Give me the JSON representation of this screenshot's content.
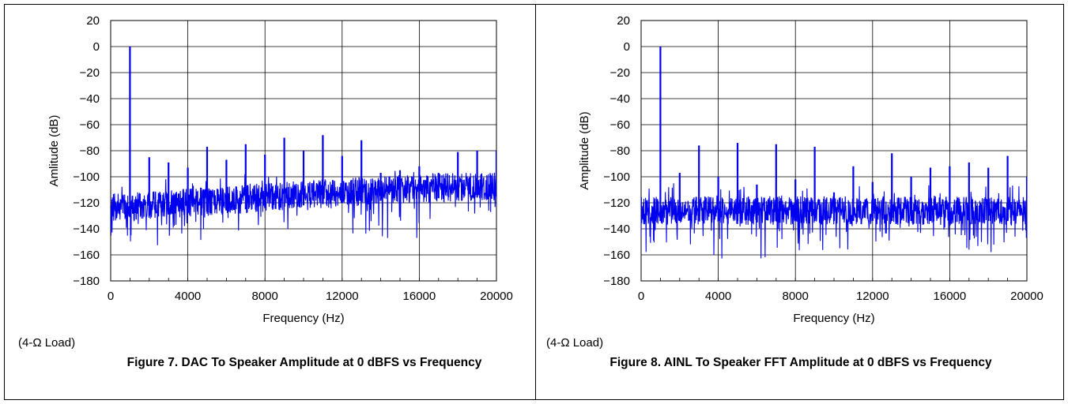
{
  "figures": [
    {
      "caption": "Figure 7. DAC To Speaker Amplitude at 0 dBFS vs Frequency",
      "note": "(4-Ω Load)"
    },
    {
      "caption": "Figure 8. AINL To Speaker FFT Amplitude at 0 dBFS vs Frequency",
      "note": "(4-Ω Load)"
    }
  ],
  "chart_data": [
    {
      "type": "line",
      "title": "",
      "xlabel": "Frequency (Hz)",
      "ylabel": "Amlitude (dB)",
      "xlim": [
        0,
        20000
      ],
      "ylim": [
        -180,
        20
      ],
      "xticks": [
        0,
        4000,
        8000,
        12000,
        16000,
        20000
      ],
      "yticks": [
        20,
        0,
        -20,
        -40,
        -60,
        -80,
        -100,
        -120,
        -140,
        -160,
        -180
      ],
      "grid": true,
      "series_color": "#0000ee",
      "noise_floor": {
        "x": [
          0,
          4000,
          8000,
          12000,
          16000,
          20000
        ],
        "y": [
          -124,
          -120,
          -116,
          -112,
          -109,
          -107
        ]
      },
      "peaks": {
        "x": [
          1000,
          2000,
          3000,
          4000,
          5000,
          6000,
          7000,
          8000,
          9000,
          10000,
          11000,
          12000,
          13000,
          14000,
          15000,
          16000,
          17000,
          18000,
          19000,
          20000
        ],
        "y": [
          0,
          -85,
          -89,
          -93,
          -77,
          -87,
          -75,
          -83,
          -70,
          -80,
          -68,
          -84,
          -72,
          -97,
          -95,
          -92,
          -97,
          -81,
          -80,
          -80
        ]
      }
    },
    {
      "type": "line",
      "title": "",
      "xlabel": "Frequency (Hz)",
      "ylabel": "Amplitude (dB)",
      "xlim": [
        0,
        20000
      ],
      "ylim": [
        -180,
        20
      ],
      "xticks": [
        0,
        4000,
        8000,
        12000,
        16000,
        20000
      ],
      "yticks": [
        20,
        0,
        -20,
        -40,
        -60,
        -80,
        -100,
        -120,
        -140,
        -160,
        -180
      ],
      "grid": true,
      "series_color": "#0000ee",
      "noise_floor": {
        "x": [
          0,
          4000,
          8000,
          12000,
          16000,
          20000
        ],
        "y": [
          -126,
          -126,
          -126,
          -126,
          -126,
          -126
        ]
      },
      "peaks": {
        "x": [
          1000,
          2000,
          3000,
          4000,
          5000,
          6000,
          7000,
          8000,
          9000,
          10000,
          11000,
          12000,
          13000,
          14000,
          15000,
          16000,
          17000,
          18000,
          19000,
          20000
        ],
        "y": [
          0,
          -97,
          -76,
          -100,
          -74,
          -106,
          -75,
          -102,
          -77,
          -112,
          -92,
          -104,
          -82,
          -100,
          -93,
          -92,
          -89,
          -93,
          -84,
          -100
        ]
      }
    }
  ]
}
